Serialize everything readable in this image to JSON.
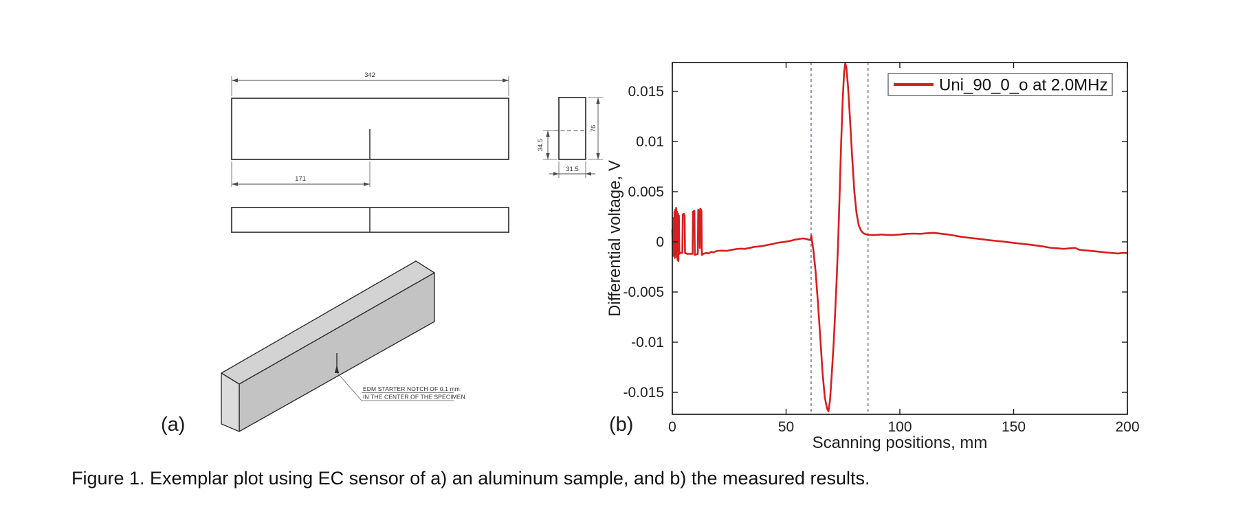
{
  "figure": {
    "panel_a_label": "(a)",
    "panel_b_label": "(b)",
    "caption": "Figure 1. Exemplar plot using EC sensor of a) an aluminum sample, and b) the measured results."
  },
  "drawing": {
    "dim_length": "342",
    "dim_notch_position": "171",
    "dim_notch_depth": "34.5",
    "dim_side_height": "76",
    "dim_side_width": "31.5",
    "note_line1": "EDM STARTER NOTCH OF 0.1 mm",
    "note_line2": "IN THE CENTER OF THE SPECIMEN"
  },
  "chart_data": {
    "type": "line",
    "title": "",
    "xlabel": "Scanning positions, mm",
    "ylabel": "Differential voltage, V",
    "xlim": [
      0,
      200
    ],
    "ylim": [
      -0.0173,
      0.0179
    ],
    "x_tick_labels": [
      "0",
      "50",
      "100",
      "150",
      "200"
    ],
    "y_tick_labels": [
      "-0.015",
      "-0.01",
      "-0.005",
      "0",
      "0.005",
      "0.01",
      "0.015"
    ],
    "grid": false,
    "box": true,
    "tick_direction": "in",
    "legend": {
      "position": "top-right",
      "entries": [
        {
          "label": "Uni_90_0_o at 2.0MHz",
          "color": "#d81e1e"
        }
      ]
    },
    "marker_lines": {
      "x_values": [
        61,
        86
      ],
      "style": "dashed",
      "color": "#5d5d93"
    },
    "series": [
      {
        "name": "Uni_90_0_o at 2.0MHz",
        "color": "#d81e1e",
        "points": [
          [
            0,
            0.0012
          ],
          [
            0.15,
            -0.0004
          ],
          [
            0.3,
            0.0015
          ],
          [
            0.45,
            -0.0014
          ],
          [
            0.6,
            0.0024
          ],
          [
            0.8,
            -0.001
          ],
          [
            0.95,
            0.003
          ],
          [
            1.1,
            -0.0016
          ],
          [
            1.3,
            0.0032
          ],
          [
            1.5,
            -0.001
          ],
          [
            1.7,
            0.0034
          ],
          [
            1.9,
            -0.0015
          ],
          [
            2.1,
            0.003
          ],
          [
            2.3,
            -0.0018
          ],
          [
            2.5,
            0.0028
          ],
          [
            2.7,
            -0.0019
          ],
          [
            2.9,
            0.0026
          ],
          [
            3.1,
            -0.0012
          ],
          [
            3.5,
            -0.0011
          ],
          [
            4.4,
            -0.0011
          ],
          [
            4.6,
            0.0027
          ],
          [
            5.1,
            0.0028
          ],
          [
            5.4,
            0.0026
          ],
          [
            5.6,
            -0.0011
          ],
          [
            6.5,
            -0.0012
          ],
          [
            8.9,
            -0.0012
          ],
          [
            9.1,
            0.003
          ],
          [
            9.7,
            0.0031
          ],
          [
            9.9,
            -0.0013
          ],
          [
            11.2,
            -0.0012
          ],
          [
            11.4,
            0.0032
          ],
          [
            11.9,
            0.003
          ],
          [
            12.1,
            -0.0006
          ],
          [
            12.3,
            0.0033
          ],
          [
            12.8,
            0.0031
          ],
          [
            13,
            -0.0013
          ],
          [
            13.6,
            -0.0012
          ],
          [
            15,
            -0.0011
          ],
          [
            16,
            -0.00115
          ],
          [
            17,
            -0.001
          ],
          [
            18,
            -0.00105
          ],
          [
            19,
            -0.00095
          ],
          [
            20,
            -0.0009
          ],
          [
            22,
            -0.00088
          ],
          [
            24,
            -0.0009
          ],
          [
            26,
            -0.0008
          ],
          [
            28,
            -0.00072
          ],
          [
            30,
            -0.00068
          ],
          [
            32,
            -0.0007
          ],
          [
            34,
            -0.0006
          ],
          [
            36,
            -0.0005
          ],
          [
            38,
            -0.00046
          ],
          [
            40,
            -0.0004
          ],
          [
            42,
            -0.0003
          ],
          [
            44,
            -0.00022
          ],
          [
            46,
            -0.0001
          ],
          [
            48,
            -4e-05
          ],
          [
            50,
            2e-05
          ],
          [
            52,
            0.0001
          ],
          [
            54,
            0.00022
          ],
          [
            56,
            0.0003
          ],
          [
            57.5,
            0.00034
          ],
          [
            59,
            0.00028
          ],
          [
            60.2,
            0.0002
          ],
          [
            60.8,
            0.00018
          ],
          [
            61.1,
            0.00065
          ],
          [
            61.4,
            0.0001
          ],
          [
            62,
            -0.0008
          ],
          [
            63,
            -0.003
          ],
          [
            64,
            -0.006
          ],
          [
            65,
            -0.0095
          ],
          [
            66,
            -0.013
          ],
          [
            67,
            -0.0155
          ],
          [
            68,
            -0.0166
          ],
          [
            68.6,
            -0.0169
          ],
          [
            69.3,
            -0.0158
          ],
          [
            70,
            -0.0135
          ],
          [
            71,
            -0.0098
          ],
          [
            72,
            -0.005
          ],
          [
            72.8,
            -0.0005
          ],
          [
            73.5,
            0.0045
          ],
          [
            74.2,
            0.0098
          ],
          [
            74.9,
            0.0142
          ],
          [
            75.5,
            0.0169
          ],
          [
            76,
            0.0178
          ],
          [
            76.5,
            0.0174
          ],
          [
            77.2,
            0.0156
          ],
          [
            78,
            0.0126
          ],
          [
            79,
            0.0086
          ],
          [
            80,
            0.005
          ],
          [
            81,
            0.0028
          ],
          [
            82,
            0.0016
          ],
          [
            83,
            0.0011
          ],
          [
            84,
            0.00086
          ],
          [
            85,
            0.00076
          ],
          [
            86,
            0.0007
          ],
          [
            88,
            0.00068
          ],
          [
            90,
            0.0007
          ],
          [
            92,
            0.00073
          ],
          [
            94,
            0.0007
          ],
          [
            96,
            0.00068
          ],
          [
            98,
            0.0007
          ],
          [
            100,
            0.00073
          ],
          [
            103,
            0.0008
          ],
          [
            106,
            0.00082
          ],
          [
            109,
            0.0008
          ],
          [
            112,
            0.00086
          ],
          [
            115,
            0.0009
          ],
          [
            117,
            0.00084
          ],
          [
            119,
            0.00078
          ],
          [
            121,
            0.00074
          ],
          [
            124,
            0.00062
          ],
          [
            127,
            0.0005
          ],
          [
            130,
            0.00042
          ],
          [
            133,
            0.00034
          ],
          [
            136,
            0.00026
          ],
          [
            139,
            0.00018
          ],
          [
            142,
            0.0001
          ],
          [
            145,
            4e-05
          ],
          [
            148,
            -5e-05
          ],
          [
            151,
            -0.00012
          ],
          [
            154,
            -0.0002
          ],
          [
            157,
            -0.00028
          ],
          [
            160,
            -0.00036
          ],
          [
            163,
            -0.00046
          ],
          [
            166,
            -0.00058
          ],
          [
            169,
            -0.00064
          ],
          [
            172,
            -0.0007
          ],
          [
            175,
            -0.00064
          ],
          [
            177,
            -0.0006
          ],
          [
            179,
            -0.0008
          ],
          [
            182,
            -0.00086
          ],
          [
            185,
            -0.00092
          ],
          [
            188,
            -0.001
          ],
          [
            191,
            -0.00106
          ],
          [
            194,
            -0.00112
          ],
          [
            196,
            -0.00116
          ],
          [
            198,
            -0.0011
          ],
          [
            200,
            -0.00113
          ]
        ]
      }
    ]
  }
}
